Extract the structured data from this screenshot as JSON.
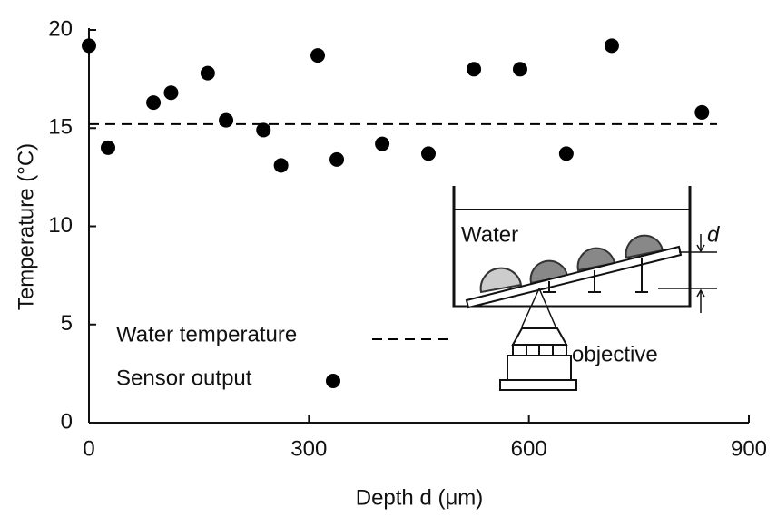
{
  "chart_data": {
    "type": "scatter",
    "x_label": "Depth d (μm)",
    "y_label": "Temperature (°C)",
    "xlim": [
      0,
      900
    ],
    "xticks": [
      0,
      300,
      600,
      900
    ],
    "ylim": [
      0,
      20
    ],
    "yticks": [
      0,
      5,
      10,
      15,
      20
    ],
    "series": [
      {
        "name": "Sensor output",
        "color": "#000000",
        "x": [
          0,
          26,
          88,
          112,
          162,
          187,
          238,
          262,
          312,
          338,
          400,
          463,
          525,
          588,
          651,
          713,
          836
        ],
        "values": [
          19.2,
          14.0,
          16.3,
          16.8,
          17.8,
          15.4,
          14.9,
          13.1,
          18.7,
          13.4,
          14.2,
          13.7,
          18.0,
          18.0,
          13.7,
          19.2,
          15.8
        ]
      }
    ],
    "reference_line": {
      "name": "Water temperature",
      "value": 15.2,
      "style": "dashed",
      "color": "#000000"
    },
    "annotations": [
      "Water",
      "d",
      "objective"
    ]
  }
}
